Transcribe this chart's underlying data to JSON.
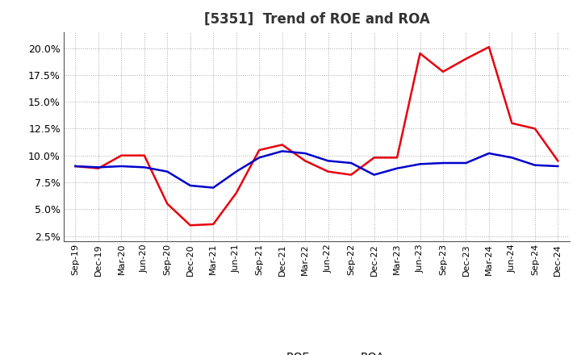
{
  "title": "[5351]  Trend of ROE and ROA",
  "x_labels": [
    "Sep-19",
    "Dec-19",
    "Mar-20",
    "Jun-20",
    "Sep-20",
    "Dec-20",
    "Mar-21",
    "Jun-21",
    "Sep-21",
    "Dec-21",
    "Mar-22",
    "Jun-22",
    "Sep-22",
    "Dec-22",
    "Mar-23",
    "Jun-23",
    "Sep-23",
    "Dec-23",
    "Mar-24",
    "Jun-24",
    "Sep-24",
    "Dec-24"
  ],
  "roe": [
    9.0,
    8.8,
    10.0,
    10.0,
    5.5,
    3.5,
    3.6,
    6.5,
    10.5,
    11.0,
    9.5,
    8.5,
    8.2,
    9.8,
    9.8,
    19.5,
    17.8,
    19.0,
    20.1,
    13.0,
    12.5,
    9.5
  ],
  "roa": [
    9.0,
    8.9,
    9.0,
    8.9,
    8.5,
    7.2,
    7.0,
    8.5,
    9.8,
    10.4,
    10.2,
    9.5,
    9.3,
    8.2,
    8.8,
    9.2,
    9.3,
    9.3,
    10.2,
    9.8,
    9.1,
    9.0
  ],
  "roe_color": "#e8000d",
  "roa_color": "#0000cc",
  "bg_color": "#ffffff",
  "plot_bg_color": "#ffffff",
  "grid_color": "#aaaaaa",
  "ylim": [
    2.0,
    21.5
  ],
  "yticks": [
    2.5,
    5.0,
    7.5,
    10.0,
    12.5,
    15.0,
    17.5,
    20.0
  ],
  "legend_roe": "ROE",
  "legend_roa": "ROA",
  "line_width": 1.8,
  "title_fontsize": 12,
  "tick_fontsize": 8
}
